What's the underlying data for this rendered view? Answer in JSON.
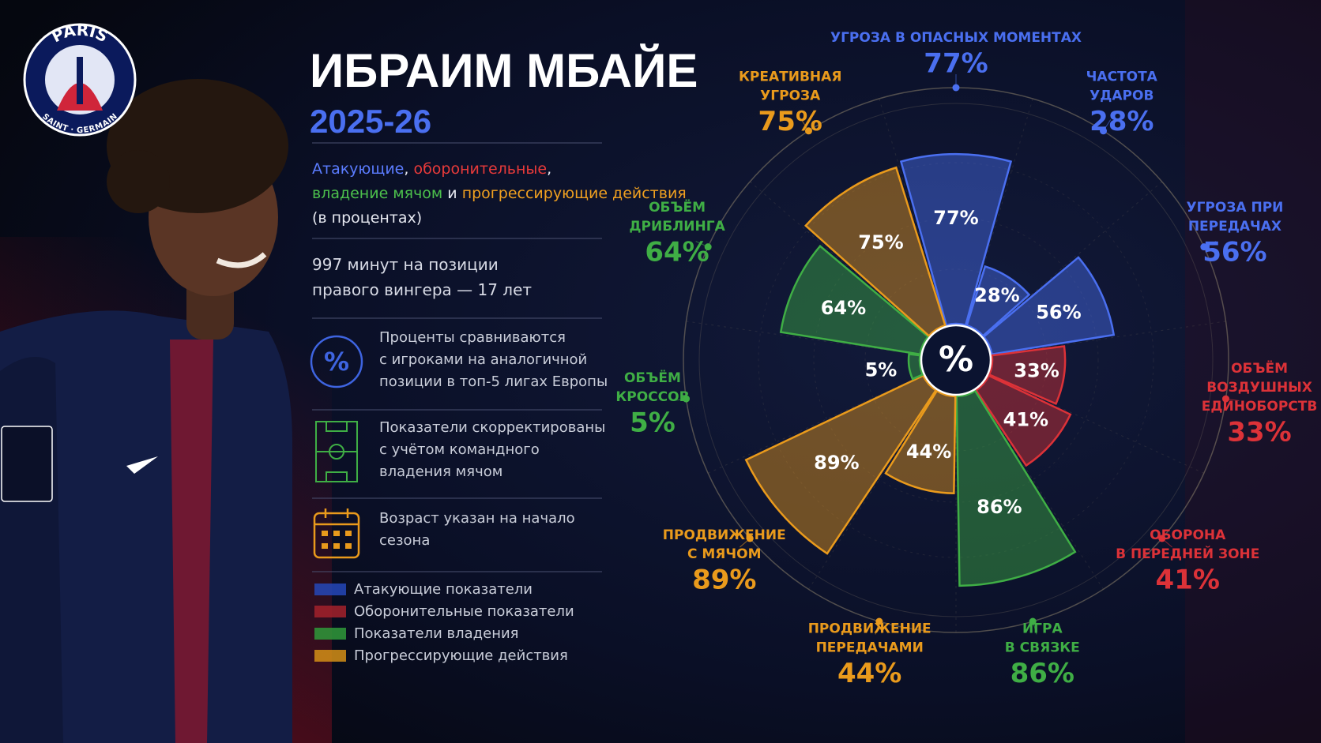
{
  "logo": {
    "top": "PARIS",
    "bottom": "SAINT · GERMAIN"
  },
  "header": {
    "title": "ИБРАИМ МБАЙЕ",
    "season": "2025-26"
  },
  "description": [
    [
      "Атакующие",
      ", ",
      "оборонительные",
      ","
    ],
    [
      "владение мячом",
      " и ",
      "прогрессирующие действия"
    ],
    [
      "(в процентах)"
    ]
  ],
  "info": [
    "997 минут на позиции",
    "правого вингера — 17 лет"
  ],
  "notes": [
    {
      "icon": "%",
      "lines": [
        "Проценты сравниваются",
        "с игроками на аналогичной",
        "позиции в топ-5 лигах Европы"
      ]
    },
    {
      "lines": [
        "Показатели скорректированы",
        "с учётом командного",
        "владения мячом"
      ]
    },
    {
      "lines": [
        "Возраст указан на начало",
        "сезона"
      ]
    }
  ],
  "legend": [
    {
      "name": "Атакующие показатели",
      "color": "#2448b8"
    },
    {
      "name": "Оборонительные показатели",
      "color": "#a3222b"
    },
    {
      "name": "Показатели владения",
      "color": "#2f9a3a"
    },
    {
      "name": "Прогрессирующие действия",
      "color": "#d48f16"
    }
  ],
  "chart_data": {
    "type": "polar-area",
    "center_label": "%",
    "categories": [
      [
        "УГРОЗА В ОПАСНЫХ МОМЕНТАХ"
      ],
      [
        "ЧАСТОТА",
        "УДАРОВ"
      ],
      [
        "УГРОЗА ПРИ",
        "ПЕРЕДАЧАХ"
      ],
      [
        "ОБЪЁМ",
        "ВОЗДУШНЫХ",
        "ЕДИНОБОРСТВ"
      ],
      [
        "ОБОРОНА",
        "В ПЕРЕДНЕЙ ЗОНЕ"
      ],
      [
        "ИГРА",
        "В СВЯЗКЕ"
      ],
      [
        "ПРОДВИЖЕНИЕ",
        "ПЕРЕДАЧАМИ"
      ],
      [
        "ПРОДВИЖЕНИЕ",
        "С МЯЧОМ"
      ],
      [
        "ОБЪЁМ",
        "КРОССОВ"
      ],
      [
        "ОБЪЁМ",
        "ДРИБЛИНГА"
      ],
      [
        "КРЕАТИВНАЯ",
        "УГРОЗА"
      ]
    ],
    "values": [
      77,
      28,
      56,
      33,
      41,
      86,
      44,
      89,
      5,
      64,
      75
    ],
    "value_labels": [
      "77%",
      "28%",
      "56%",
      "33%",
      "41%",
      "86%",
      "44%",
      "89%",
      "5%",
      "64%",
      "75%"
    ],
    "colors": [
      "#4a6ff0",
      "#4a6ff0",
      "#4a6ff0",
      "#dc3238",
      "#dc3238",
      "#3fae45",
      "#e99a1c",
      "#e99a1c",
      "#3fae45",
      "#3fae45",
      "#e99a1c"
    ],
    "rlim": [
      0,
      100
    ]
  }
}
